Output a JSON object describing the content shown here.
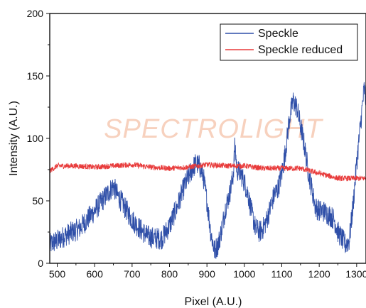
{
  "chart_data": {
    "type": "line",
    "xlabel": "Pixel (A.U.)",
    "ylabel": "Intensity (A.U.)",
    "xlim": [
      480,
      1325
    ],
    "ylim": [
      0,
      200
    ],
    "x_ticks": [
      500,
      600,
      700,
      800,
      900,
      1000,
      1100,
      1200,
      1300
    ],
    "y_ticks": [
      0,
      50,
      100,
      150,
      200
    ],
    "legend_position": "top-right",
    "grid": false,
    "watermark": "SPECTROLIGHT",
    "series": [
      {
        "name": "Speckle",
        "color": "#2f4fa8",
        "x": [
          480,
          500,
          520,
          540,
          560,
          580,
          600,
          620,
          640,
          650,
          660,
          680,
          700,
          720,
          740,
          760,
          780,
          800,
          820,
          840,
          860,
          870,
          880,
          890,
          900,
          910,
          920,
          930,
          940,
          950,
          960,
          970,
          975,
          980,
          990,
          1000,
          1010,
          1020,
          1030,
          1040,
          1050,
          1060,
          1070,
          1080,
          1090,
          1100,
          1110,
          1120,
          1130,
          1140,
          1150,
          1160,
          1170,
          1180,
          1190,
          1200,
          1210,
          1220,
          1230,
          1240,
          1250,
          1260,
          1270,
          1280,
          1290,
          1300,
          1310,
          1320,
          1325
        ],
        "y": [
          15,
          18,
          22,
          25,
          28,
          35,
          42,
          50,
          58,
          62,
          55,
          45,
          35,
          28,
          22,
          20,
          20,
          30,
          45,
          62,
          75,
          80,
          78,
          70,
          50,
          25,
          10,
          15,
          28,
          45,
          55,
          70,
          95,
          75,
          72,
          65,
          55,
          40,
          28,
          25,
          28,
          35,
          45,
          55,
          60,
          72,
          90,
          115,
          130,
          125,
          110,
          95,
          75,
          60,
          45,
          42,
          42,
          40,
          38,
          35,
          25,
          20,
          15,
          18,
          45,
          80,
          110,
          140,
          130
        ]
      },
      {
        "name": "Speckle reduced",
        "color": "#e83a3a",
        "x": [
          480,
          500,
          550,
          600,
          650,
          700,
          750,
          800,
          850,
          900,
          950,
          1000,
          1050,
          1100,
          1150,
          1200,
          1250,
          1300,
          1325
        ],
        "y": [
          74,
          78,
          78,
          77,
          78,
          79,
          77,
          76,
          77,
          79,
          78,
          78,
          76,
          76,
          76,
          72,
          68,
          68,
          68
        ]
      }
    ]
  }
}
